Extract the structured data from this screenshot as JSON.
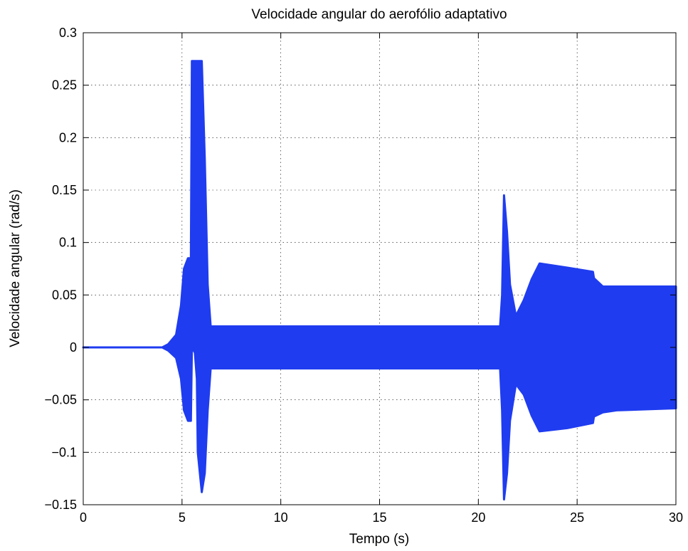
{
  "chart_data": {
    "type": "line",
    "title": "Velocidade angular do aerofólio adaptativo",
    "xlabel": "Tempo (s)",
    "ylabel": "Velocidade angular (rad/s)",
    "xlim": [
      0,
      30
    ],
    "ylim": [
      -0.15,
      0.3
    ],
    "xticks": [
      0,
      5,
      10,
      15,
      20,
      25,
      30
    ],
    "xtick_labels": [
      "0",
      "5",
      "10",
      "15",
      "20",
      "25",
      "30"
    ],
    "yticks": [
      -0.15,
      -0.1,
      -0.05,
      0,
      0.05,
      0.1,
      0.15,
      0.2,
      0.25,
      0.3
    ],
    "ytick_labels": [
      "−0.15",
      "−0.1",
      "−0.05",
      "0",
      "0.05",
      "0.1",
      "0.15",
      "0.2",
      "0.25",
      "0.3"
    ],
    "grid": true,
    "series_color": "#1f3cf0",
    "series": [
      {
        "envelope": [
          {
            "t": 0.0,
            "upper": 0.0,
            "lower": 0.0
          },
          {
            "t": 4.0,
            "upper": 0.0,
            "lower": 0.0
          },
          {
            "t": 4.3,
            "upper": 0.003,
            "lower": -0.003
          },
          {
            "t": 4.7,
            "upper": 0.012,
            "lower": -0.01
          },
          {
            "t": 4.95,
            "upper": 0.04,
            "lower": -0.03
          },
          {
            "t": 5.1,
            "upper": 0.075,
            "lower": -0.06
          },
          {
            "t": 5.3,
            "upper": 0.085,
            "lower": -0.07
          },
          {
            "t": 5.45,
            "upper": 0.085,
            "lower": -0.07
          },
          {
            "t": 5.5,
            "upper": 0.273,
            "lower": 0.0
          },
          {
            "t": 5.65,
            "upper": 0.273,
            "lower": -0.005
          },
          {
            "t": 5.75,
            "upper": 0.273,
            "lower": -0.03
          },
          {
            "t": 5.8,
            "upper": 0.273,
            "lower": -0.1
          },
          {
            "t": 6.0,
            "upper": 0.273,
            "lower": -0.138
          },
          {
            "t": 6.15,
            "upper": 0.18,
            "lower": -0.12
          },
          {
            "t": 6.3,
            "upper": 0.06,
            "lower": -0.06
          },
          {
            "t": 6.45,
            "upper": 0.02,
            "lower": -0.02
          },
          {
            "t": 21.1,
            "upper": 0.02,
            "lower": -0.02
          },
          {
            "t": 21.2,
            "upper": 0.05,
            "lower": -0.06
          },
          {
            "t": 21.3,
            "upper": 0.145,
            "lower": -0.145
          },
          {
            "t": 21.45,
            "upper": 0.11,
            "lower": -0.12
          },
          {
            "t": 21.6,
            "upper": 0.06,
            "lower": -0.07
          },
          {
            "t": 21.9,
            "upper": 0.03,
            "lower": -0.035
          },
          {
            "t": 22.3,
            "upper": 0.045,
            "lower": -0.045
          },
          {
            "t": 22.7,
            "upper": 0.065,
            "lower": -0.065
          },
          {
            "t": 23.1,
            "upper": 0.08,
            "lower": -0.08
          },
          {
            "t": 24.5,
            "upper": 0.076,
            "lower": -0.077
          },
          {
            "t": 25.8,
            "upper": 0.072,
            "lower": -0.072
          },
          {
            "t": 25.85,
            "upper": 0.066,
            "lower": -0.066
          },
          {
            "t": 26.3,
            "upper": 0.058,
            "lower": -0.062
          },
          {
            "t": 27.0,
            "upper": 0.058,
            "lower": -0.06
          },
          {
            "t": 30.0,
            "upper": 0.058,
            "lower": -0.058
          }
        ]
      }
    ]
  }
}
